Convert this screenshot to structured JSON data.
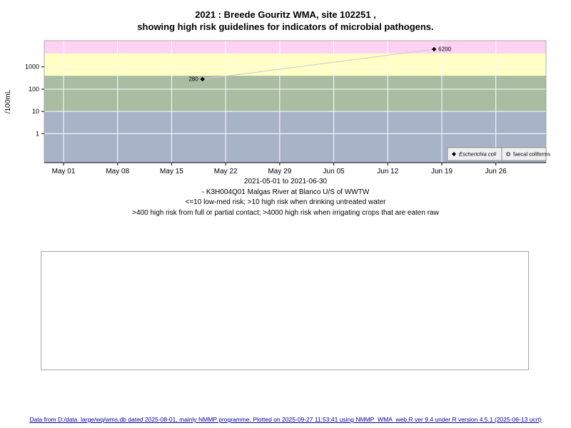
{
  "title": {
    "line1": "2021 : Breede Gouritz WMA, site 102251 ,",
    "line2": "showing high risk guidelines for indicators of microbial pathogens."
  },
  "chart_data": {
    "type": "scatter",
    "ylabel": "/100mL",
    "y_log": true,
    "ylim": [
      0.05,
      15000
    ],
    "y_ticks": [
      1,
      10,
      100,
      1000
    ],
    "x_range_days": [
      -2.5,
      62.5
    ],
    "x_ticks": [
      {
        "day": 0,
        "label": "May 01"
      },
      {
        "day": 7,
        "label": "May 08"
      },
      {
        "day": 14,
        "label": "May 15"
      },
      {
        "day": 21,
        "label": "May 22"
      },
      {
        "day": 28,
        "label": "May 29"
      },
      {
        "day": 35,
        "label": "Jun 05"
      },
      {
        "day": 42,
        "label": "Jun 12"
      },
      {
        "day": 49,
        "label": "Jun 19"
      },
      {
        "day": 56,
        "label": "Jun 26"
      }
    ],
    "risk_bands": [
      {
        "from": 0.05,
        "to": 10,
        "color": "#a9b3c8",
        "meaning": "low-med risk"
      },
      {
        "from": 10,
        "to": 400,
        "color": "#aabca2",
        "meaning": "high risk when drinking untreated water"
      },
      {
        "from": 400,
        "to": 4000,
        "color": "#ffffc6",
        "meaning": "high risk from full or partial contact"
      },
      {
        "from": 4000,
        "to": 15000,
        "color": "#fcd3f2",
        "meaning": "high risk when irrigating crops that are eaten raw"
      }
    ],
    "series": [
      {
        "name": "Escherichia coli",
        "marker": "diamond",
        "italic": true,
        "line_color": "#c9c9c9",
        "points": [
          {
            "day": 18,
            "value": 280,
            "label": "280",
            "label_side": "left"
          },
          {
            "day": 48,
            "value": 6200,
            "label": "6200",
            "label_side": "right"
          }
        ]
      },
      {
        "name": "faecal coliforms",
        "marker": "open-circle",
        "italic": false,
        "points": []
      }
    ]
  },
  "caption": {
    "line1": "2021-05-01 to 2021-06-30",
    "line2": "- K3H004Q01 Malgas River at Blanco U/S of WWTW",
    "line3": "<=10 low-med risk; >10 high risk when drinking untreated water",
    "line4": ">400 high risk from full or partial contact; >4000 high risk when irrigating crops that are eaten raw"
  },
  "footer": "Data from D:/data_large/wq/wms.db dated 2025-08-01, mainly NMMP programme. Plotted on 2025-09-27 11:53:41 using NMMP_WMA_web.R ver 9.4 under R version 4.5.1 (2025-06-13 ucrt)"
}
